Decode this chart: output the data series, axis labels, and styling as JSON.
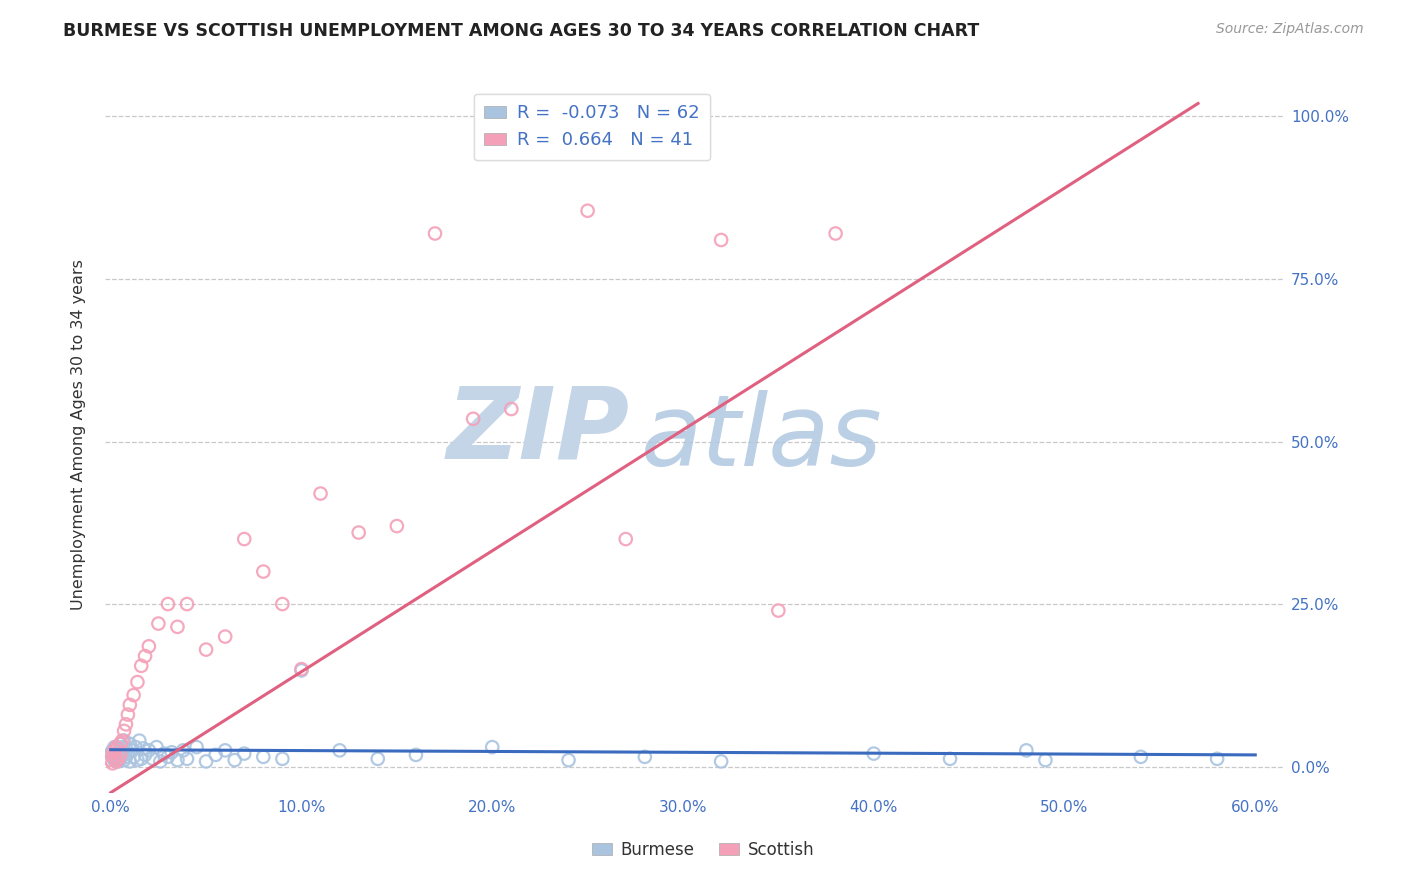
{
  "title": "BURMESE VS SCOTTISH UNEMPLOYMENT AMONG AGES 30 TO 34 YEARS CORRELATION CHART",
  "source": "Source: ZipAtlas.com",
  "ylabel": "Unemployment Among Ages 30 to 34 years",
  "burmese_color": "#aac4e0",
  "scottish_color": "#f4a0b8",
  "burmese_line_color": "#3a6bbf",
  "scottish_line_color": "#e06080",
  "burmese_R": -0.073,
  "burmese_N": 62,
  "scottish_R": 0.664,
  "scottish_N": 41,
  "xlim_min": -0.003,
  "xlim_max": 0.615,
  "ylim_min": -0.04,
  "ylim_max": 1.06,
  "yticks": [
    0.0,
    0.25,
    0.5,
    0.75,
    1.0
  ],
  "ytick_labels": [
    "0.0%",
    "25.0%",
    "50.0%",
    "75.0%",
    "100.0%"
  ],
  "xticks": [
    0.0,
    0.1,
    0.2,
    0.3,
    0.4,
    0.5,
    0.6
  ],
  "xtick_labels": [
    "0.0%",
    "10.0%",
    "20.0%",
    "30.0%",
    "40.0%",
    "50.0%",
    "60.0%"
  ],
  "tick_color": "#4472c4",
  "grid_color": "#c8c8c8",
  "background_color": "#ffffff",
  "burmese_x": [
    0.0,
    0.001,
    0.001,
    0.002,
    0.002,
    0.002,
    0.003,
    0.003,
    0.004,
    0.004,
    0.005,
    0.005,
    0.005,
    0.006,
    0.006,
    0.007,
    0.007,
    0.008,
    0.008,
    0.009,
    0.01,
    0.01,
    0.011,
    0.012,
    0.013,
    0.014,
    0.015,
    0.016,
    0.017,
    0.018,
    0.02,
    0.022,
    0.024,
    0.026,
    0.028,
    0.03,
    0.032,
    0.035,
    0.038,
    0.04,
    0.045,
    0.05,
    0.055,
    0.06,
    0.065,
    0.07,
    0.08,
    0.09,
    0.1,
    0.12,
    0.14,
    0.16,
    0.2,
    0.24,
    0.28,
    0.32,
    0.4,
    0.44,
    0.48,
    0.49,
    0.54,
    0.58
  ],
  "burmese_y": [
    0.02,
    0.015,
    0.025,
    0.01,
    0.03,
    0.012,
    0.018,
    0.028,
    0.008,
    0.022,
    0.035,
    0.012,
    0.025,
    0.018,
    0.03,
    0.01,
    0.04,
    0.015,
    0.028,
    0.02,
    0.035,
    0.008,
    0.025,
    0.015,
    0.03,
    0.01,
    0.04,
    0.012,
    0.028,
    0.018,
    0.025,
    0.012,
    0.03,
    0.008,
    0.02,
    0.015,
    0.022,
    0.01,
    0.025,
    0.012,
    0.03,
    0.008,
    0.018,
    0.025,
    0.01,
    0.02,
    0.015,
    0.012,
    0.148,
    0.025,
    0.012,
    0.018,
    0.03,
    0.01,
    0.015,
    0.008,
    0.02,
    0.012,
    0.025,
    0.01,
    0.015,
    0.012
  ],
  "scottish_x": [
    0.0,
    0.001,
    0.001,
    0.002,
    0.002,
    0.003,
    0.003,
    0.004,
    0.005,
    0.005,
    0.006,
    0.007,
    0.008,
    0.009,
    0.01,
    0.012,
    0.014,
    0.016,
    0.018,
    0.02,
    0.025,
    0.03,
    0.035,
    0.04,
    0.05,
    0.06,
    0.07,
    0.08,
    0.09,
    0.1,
    0.11,
    0.13,
    0.15,
    0.17,
    0.19,
    0.21,
    0.25,
    0.27,
    0.32,
    0.35,
    0.38
  ],
  "scottish_y": [
    0.01,
    0.02,
    0.005,
    0.015,
    0.025,
    0.008,
    0.03,
    0.012,
    0.018,
    0.035,
    0.04,
    0.055,
    0.065,
    0.08,
    0.095,
    0.11,
    0.13,
    0.155,
    0.17,
    0.185,
    0.22,
    0.25,
    0.215,
    0.25,
    0.18,
    0.2,
    0.35,
    0.3,
    0.25,
    0.15,
    0.42,
    0.36,
    0.37,
    0.82,
    0.535,
    0.55,
    0.855,
    0.35,
    0.81,
    0.24,
    0.82
  ],
  "sco_line_x0": 0.0,
  "sco_line_y0": -0.04,
  "sco_line_x1": 0.57,
  "sco_line_y1": 1.02,
  "bur_line_x0": 0.0,
  "bur_line_y0": 0.026,
  "bur_line_x1": 0.6,
  "bur_line_y1": 0.018,
  "watermark_zip_color": "#c5d5e8",
  "watermark_atlas_color": "#b0c8e0"
}
